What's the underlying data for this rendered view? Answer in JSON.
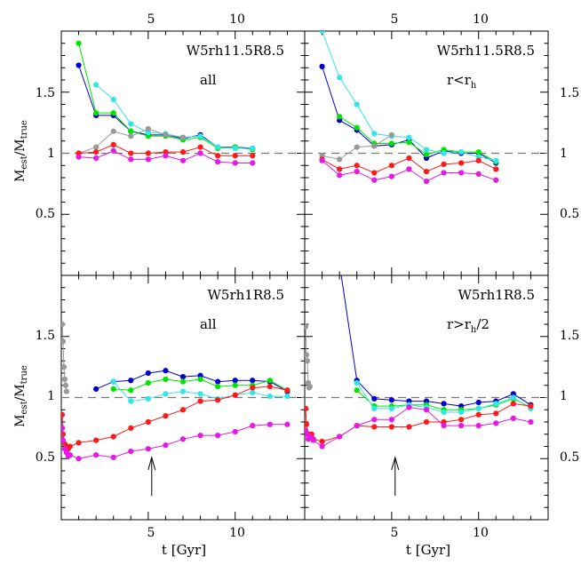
{
  "figure": {
    "x_axis_label_main": "t [Gyr]",
    "y_axis_label_main": "M",
    "y_axis_label_sub1": "est",
    "y_axis_label_sep": "/M",
    "y_axis_label_sub2": "true",
    "top_ticks": [
      "5",
      "10"
    ],
    "bottom_ticks": [
      "5",
      "10"
    ],
    "y_ticks_top": [
      "0.5",
      "1",
      "1.5"
    ],
    "y_ticks_bottom": [
      "0.5",
      "1",
      "1.5"
    ]
  },
  "chart_data": [
    {
      "type": "line",
      "panel": "top-left",
      "model_label": "W5rh11.5R8.5",
      "subset_label": "all",
      "xlim": [
        0,
        14
      ],
      "ylim": [
        0,
        2.0
      ],
      "reference_line": 1.0,
      "series": [
        {
          "color": "#0000cc",
          "x": [
            1,
            2,
            3,
            4,
            5,
            6,
            7,
            8,
            9,
            10,
            11
          ],
          "y": [
            1.72,
            1.31,
            1.31,
            1.18,
            1.15,
            1.15,
            1.12,
            1.15,
            1.05,
            1.05,
            1.04
          ]
        },
        {
          "color": "#00e600",
          "x": [
            1,
            2,
            3,
            4,
            5,
            6,
            7,
            8,
            9,
            10,
            11
          ],
          "y": [
            1.9,
            1.33,
            1.33,
            1.18,
            1.14,
            1.14,
            1.11,
            1.13,
            1.04,
            1.05,
            1.03
          ]
        },
        {
          "color": "#33e6e6",
          "x": [
            2,
            3,
            4,
            5,
            6,
            7,
            8,
            9,
            10,
            11
          ],
          "y": [
            1.56,
            1.44,
            1.24,
            1.17,
            1.16,
            1.13,
            1.14,
            1.05,
            1.04,
            1.04
          ]
        },
        {
          "color": "#999999",
          "x": [
            1,
            2,
            3,
            4,
            5,
            6,
            7
          ],
          "y": [
            1.0,
            1.05,
            1.18,
            1.14,
            1.2,
            1.15,
            1.13
          ]
        },
        {
          "color": "#ff1a1a",
          "x": [
            1,
            2,
            3,
            4,
            5,
            6,
            7,
            8,
            9,
            10,
            11
          ],
          "y": [
            1.0,
            1.01,
            1.07,
            1.0,
            1.0,
            1.01,
            1.01,
            1.05,
            0.98,
            0.98,
            0.98
          ]
        },
        {
          "color": "#e619e6",
          "x": [
            1,
            2,
            3,
            4,
            5,
            6,
            7,
            8,
            9,
            10,
            11
          ],
          "y": [
            0.97,
            0.96,
            1.02,
            0.95,
            0.95,
            0.98,
            0.94,
            1.0,
            0.93,
            0.92,
            0.92
          ]
        }
      ]
    },
    {
      "type": "line",
      "panel": "top-right",
      "model_label": "W5rh11.5R8.5",
      "subset_label": "r<r",
      "subset_label_sub": "h",
      "xlim": [
        0,
        14
      ],
      "ylim": [
        0,
        2.0
      ],
      "reference_line": 1.0,
      "series": [
        {
          "color": "#0000cc",
          "x": [
            1,
            2,
            3,
            4,
            5,
            6,
            7,
            8,
            9,
            10,
            11
          ],
          "y": [
            1.71,
            1.27,
            1.19,
            1.06,
            1.07,
            1.11,
            0.96,
            1.02,
            1.0,
            1.0,
            0.92
          ]
        },
        {
          "color": "#00e600",
          "x": [
            2,
            3,
            4,
            5,
            6,
            7,
            8,
            9,
            10,
            11
          ],
          "y": [
            1.3,
            1.21,
            1.08,
            1.08,
            1.09,
            0.99,
            1.03,
            1.01,
            1.01,
            0.93
          ]
        },
        {
          "color": "#33e6e6",
          "x": [
            1,
            2,
            3,
            4,
            5,
            6,
            7,
            8,
            9,
            10,
            11
          ],
          "y": [
            2.0,
            1.62,
            1.4,
            1.16,
            1.14,
            1.13,
            1.03,
            1.0,
            1.01,
            0.97,
            0.94
          ]
        },
        {
          "color": "#999999",
          "x": [
            1,
            2,
            3,
            4,
            5
          ],
          "y": [
            0.98,
            0.95,
            1.05,
            1.06,
            1.15
          ]
        },
        {
          "color": "#ff1a1a",
          "x": [
            1,
            2,
            3,
            4,
            5,
            6,
            7,
            8,
            9,
            10,
            11
          ],
          "y": [
            0.95,
            0.87,
            0.9,
            0.84,
            0.9,
            0.96,
            0.85,
            0.91,
            0.92,
            0.94,
            0.87
          ]
        },
        {
          "color": "#e619e6",
          "x": [
            1,
            2,
            3,
            4,
            5,
            6,
            7,
            8,
            9,
            10,
            11
          ],
          "y": [
            0.94,
            0.82,
            0.85,
            0.78,
            0.81,
            0.87,
            0.77,
            0.84,
            0.84,
            0.83,
            0.78
          ]
        }
      ]
    },
    {
      "type": "line",
      "panel": "bottom-left",
      "model_label": "W5rh1R8.5",
      "subset_label": "all",
      "xlim": [
        0,
        14
      ],
      "ylim": [
        0,
        2.0
      ],
      "reference_line": 1.0,
      "arrow_at_x": 5.2,
      "series": [
        {
          "color": "#0000cc",
          "x": [
            2,
            3,
            4,
            5,
            6,
            7,
            8,
            9,
            10,
            11,
            12,
            13
          ],
          "y": [
            1.07,
            1.13,
            1.14,
            1.2,
            1.22,
            1.17,
            1.18,
            1.13,
            1.14,
            1.14,
            1.13,
            1.05
          ]
        },
        {
          "color": "#00e600",
          "x": [
            3,
            4,
            5,
            6,
            7,
            8,
            9,
            10,
            11,
            12,
            13
          ],
          "y": [
            1.07,
            1.06,
            1.12,
            1.15,
            1.13,
            1.15,
            1.09,
            1.1,
            1.1,
            1.14,
            1.06
          ]
        },
        {
          "color": "#33e6e6",
          "x": [
            3,
            4,
            5,
            6,
            7,
            8,
            9,
            10,
            11,
            12,
            13
          ],
          "y": [
            1.13,
            0.97,
            0.99,
            1.03,
            1.05,
            1.03,
            0.99,
            1.02,
            1.04,
            1.01,
            1.01
          ]
        },
        {
          "color": "#999999",
          "x": [
            0.05,
            0.1,
            0.15,
            0.2,
            0.25,
            0.3
          ],
          "y": [
            1.6,
            1.46,
            1.25,
            1.15,
            1.1,
            1.05
          ]
        },
        {
          "color": "#ff1a1a",
          "x": [
            0.05,
            0.1,
            0.2,
            0.3,
            0.4,
            0.5,
            1,
            2,
            3,
            4,
            5,
            6,
            7,
            8,
            9,
            10,
            11,
            12,
            13
          ],
          "y": [
            0.86,
            0.7,
            0.62,
            0.6,
            0.58,
            0.6,
            0.63,
            0.65,
            0.68,
            0.75,
            0.8,
            0.85,
            0.9,
            0.97,
            0.98,
            1.02,
            1.08,
            1.09,
            1.06
          ]
        },
        {
          "color": "#e619e6",
          "x": [
            0.05,
            0.1,
            0.2,
            0.3,
            0.4,
            0.5,
            1,
            2,
            3,
            4,
            5,
            6,
            7,
            8,
            9,
            10,
            11,
            12,
            13
          ],
          "y": [
            0.75,
            0.65,
            0.58,
            0.55,
            0.52,
            0.53,
            0.5,
            0.53,
            0.51,
            0.56,
            0.58,
            0.61,
            0.66,
            0.69,
            0.69,
            0.72,
            0.77,
            0.78,
            0.78
          ]
        }
      ]
    },
    {
      "type": "line",
      "panel": "bottom-right",
      "model_label": "W5rh1R8.5",
      "subset_label": "r>r",
      "subset_label_sub": "h",
      "subset_label_tail": "/2",
      "xlim": [
        0,
        14
      ],
      "ylim": [
        0,
        2.0
      ],
      "reference_line": 1.0,
      "arrow_at_x": 5.2,
      "series": [
        {
          "color": "#0000cc",
          "x": [
            2,
            3,
            4,
            5,
            6,
            7,
            8,
            9,
            10,
            11,
            12,
            13
          ],
          "y": [
            2.1,
            1.14,
            0.99,
            0.98,
            0.97,
            0.97,
            0.95,
            0.93,
            0.96,
            0.97,
            1.03,
            0.94
          ]
        },
        {
          "color": "#00e600",
          "x": [
            3,
            4,
            5,
            6,
            7,
            8,
            9,
            10,
            11,
            12,
            13
          ],
          "y": [
            1.06,
            0.93,
            0.93,
            0.94,
            0.94,
            0.9,
            0.9,
            0.91,
            0.94,
            0.99,
            0.92
          ]
        },
        {
          "color": "#33e6e6",
          "x": [
            3,
            4,
            5,
            6,
            7,
            8,
            9,
            10,
            11,
            12,
            13
          ],
          "y": [
            1.12,
            0.91,
            0.91,
            0.94,
            0.92,
            0.88,
            0.88,
            0.91,
            0.95,
            1.0,
            0.91
          ]
        },
        {
          "color": "#999999",
          "x": [
            0.05,
            0.1,
            0.15,
            0.2,
            0.25,
            0.3
          ],
          "y": [
            1.58,
            1.35,
            1.3,
            1.12,
            1.08,
            1.09
          ]
        },
        {
          "color": "#ff1a1a",
          "x": [
            0.05,
            0.1,
            0.2,
            0.3,
            0.4,
            0.5,
            1,
            2,
            3,
            4,
            5,
            6,
            7,
            8,
            9,
            10,
            11,
            12,
            13
          ],
          "y": [
            0.91,
            0.78,
            0.7,
            0.68,
            0.7,
            0.66,
            0.64,
            0.68,
            0.77,
            0.76,
            0.76,
            0.76,
            0.8,
            0.8,
            0.82,
            0.86,
            0.87,
            0.95,
            0.93
          ]
        },
        {
          "color": "#e619e6",
          "x": [
            0.05,
            0.1,
            0.2,
            0.3,
            0.4,
            0.5,
            1,
            2,
            3,
            4,
            5,
            6,
            7,
            8,
            9,
            10,
            11,
            12,
            13
          ],
          "y": [
            0.73,
            0.7,
            0.66,
            0.68,
            0.67,
            0.65,
            0.6,
            0.68,
            0.77,
            0.82,
            0.82,
            0.92,
            0.9,
            0.77,
            0.77,
            0.77,
            0.79,
            0.83,
            0.8
          ]
        }
      ]
    }
  ]
}
